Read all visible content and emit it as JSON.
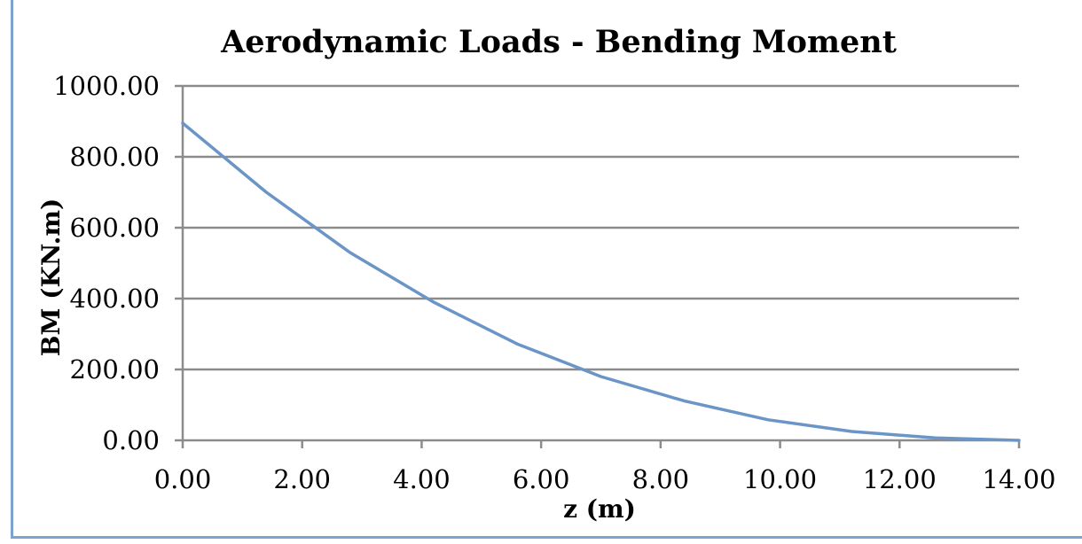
{
  "colors": {
    "series": "#6a95c6",
    "grid": "#8c8c8c",
    "axis": "#8c8c8c",
    "frame": "#7ba4cf"
  },
  "chart_data": {
    "type": "line",
    "title": "Aerodynamic Loads - Bending Moment",
    "xlabel": "z (m)",
    "ylabel": "BM (KN.m)",
    "xlim": [
      0,
      14
    ],
    "ylim": [
      0,
      1000
    ],
    "x_ticks": [
      "0.00",
      "2.00",
      "4.00",
      "6.00",
      "8.00",
      "10.00",
      "12.00",
      "14.00"
    ],
    "y_ticks": [
      "0.00",
      "200.00",
      "400.00",
      "600.00",
      "800.00",
      "1000.00"
    ],
    "grid": true,
    "series": [
      {
        "x": [
          0,
          1.4,
          2.8,
          4.2,
          5.6,
          7.0,
          8.4,
          9.8,
          11.2,
          12.6,
          14.0
        ],
        "y": [
          895,
          700,
          530,
          390,
          272,
          180,
          111,
          58,
          25,
          7,
          0
        ]
      }
    ]
  }
}
